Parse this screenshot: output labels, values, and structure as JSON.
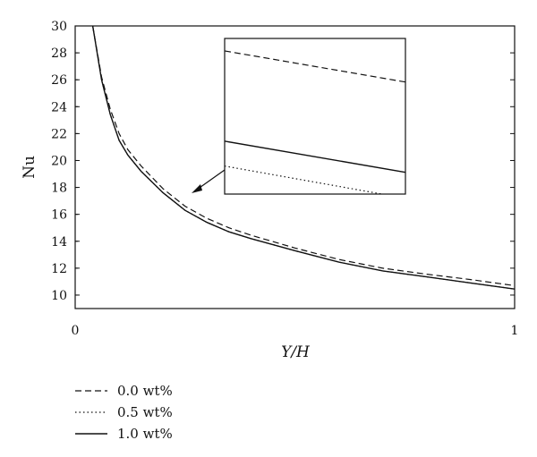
{
  "chart_data": {
    "type": "line",
    "xlabel": "Y/H",
    "ylabel": "Nu",
    "xlim": [
      0,
      1
    ],
    "ylim": [
      9,
      30
    ],
    "x_ticks": [
      0,
      1
    ],
    "y_ticks": [
      10,
      12,
      14,
      16,
      18,
      20,
      22,
      24,
      26,
      28,
      30
    ],
    "grid": false,
    "legend_position": "bottom-left",
    "series": [
      {
        "name": "0.0 wt%",
        "style": "dashed",
        "points": [
          [
            0.04,
            30.0
          ],
          [
            0.06,
            26.2
          ],
          [
            0.08,
            23.8
          ],
          [
            0.1,
            22.0
          ],
          [
            0.12,
            20.8
          ],
          [
            0.15,
            19.6
          ],
          [
            0.2,
            17.9
          ],
          [
            0.25,
            16.6
          ],
          [
            0.3,
            15.7
          ],
          [
            0.35,
            15.0
          ],
          [
            0.4,
            14.45
          ],
          [
            0.5,
            13.5
          ],
          [
            0.6,
            12.65
          ],
          [
            0.7,
            12.0
          ],
          [
            0.8,
            11.55
          ],
          [
            0.9,
            11.15
          ],
          [
            1.0,
            10.7
          ]
        ]
      },
      {
        "name": "0.5 wt%",
        "style": "dotted",
        "points": [
          [
            0.04,
            30.0
          ],
          [
            0.06,
            26.0
          ],
          [
            0.08,
            23.4
          ],
          [
            0.1,
            21.5
          ],
          [
            0.12,
            20.4
          ],
          [
            0.15,
            19.2
          ],
          [
            0.2,
            17.6
          ],
          [
            0.25,
            16.3
          ],
          [
            0.3,
            15.4
          ],
          [
            0.35,
            14.7
          ],
          [
            0.4,
            14.2
          ],
          [
            0.5,
            13.3
          ],
          [
            0.6,
            12.45
          ],
          [
            0.7,
            11.8
          ],
          [
            0.8,
            11.35
          ],
          [
            0.9,
            10.9
          ],
          [
            1.0,
            10.45
          ]
        ]
      },
      {
        "name": "1.0 wt%",
        "style": "solid",
        "points": [
          [
            0.04,
            30.0
          ],
          [
            0.06,
            26.0
          ],
          [
            0.08,
            23.4
          ],
          [
            0.1,
            21.5
          ],
          [
            0.12,
            20.4
          ],
          [
            0.15,
            19.2
          ],
          [
            0.2,
            17.6
          ],
          [
            0.25,
            16.3
          ],
          [
            0.3,
            15.4
          ],
          [
            0.35,
            14.7
          ],
          [
            0.4,
            14.2
          ],
          [
            0.5,
            13.3
          ],
          [
            0.6,
            12.45
          ],
          [
            0.7,
            11.8
          ],
          [
            0.8,
            11.35
          ],
          [
            0.9,
            10.9
          ],
          [
            1.0,
            10.45
          ]
        ]
      }
    ],
    "inset": {
      "shows": "zoomed view of the curves near the arrow target",
      "series_lines": [
        {
          "series": "0.0 wt%",
          "from": [
            0.0,
            0.92
          ],
          "to": [
            1.0,
            0.72
          ]
        },
        {
          "series": "1.0 wt%",
          "from": [
            0.0,
            0.34
          ],
          "to": [
            1.0,
            0.14
          ]
        },
        {
          "series": "0.5 wt%",
          "from": [
            0.0,
            0.18
          ],
          "to": [
            0.87,
            0.0
          ]
        }
      ]
    }
  }
}
